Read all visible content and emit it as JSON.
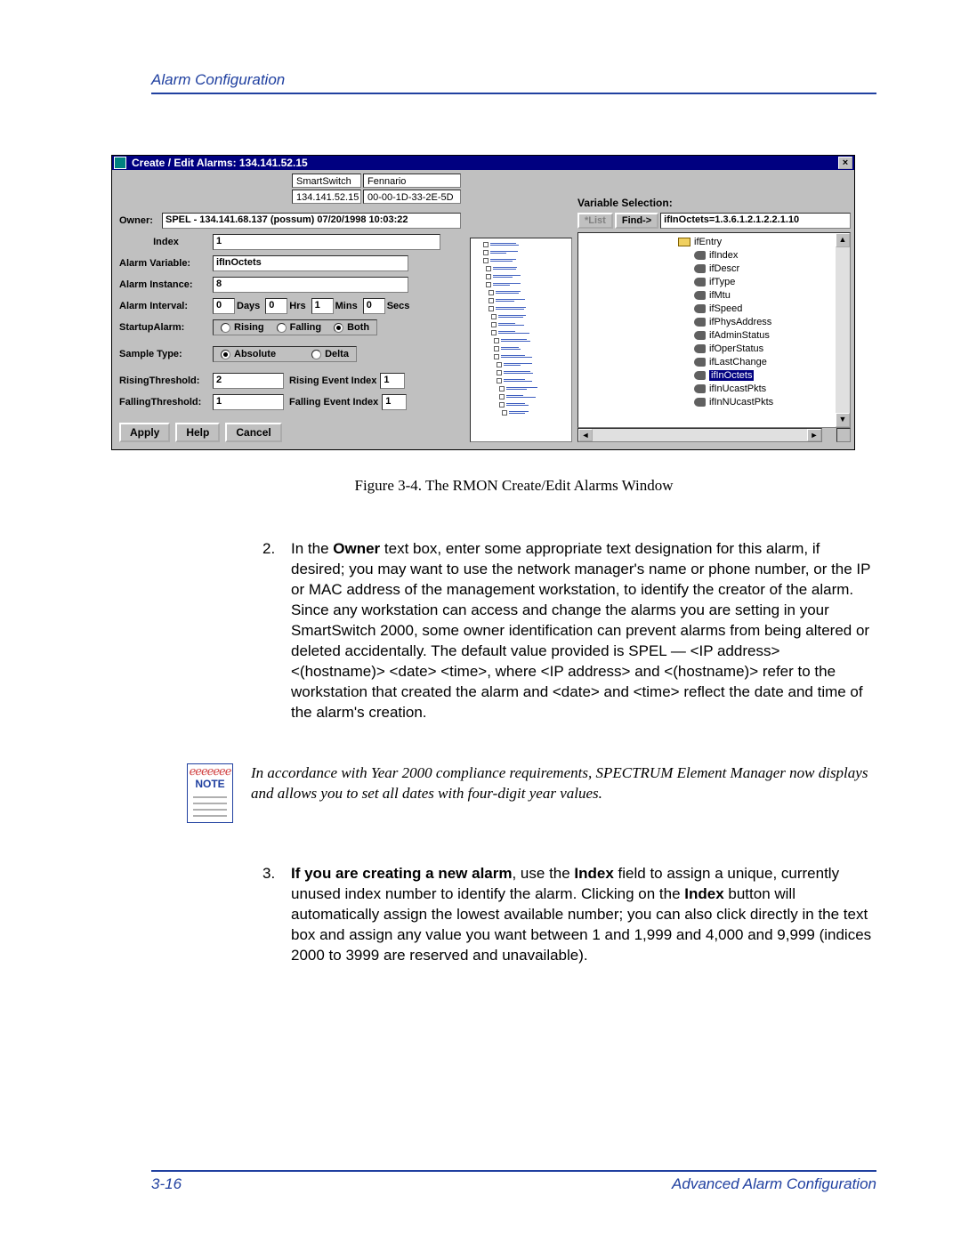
{
  "header": {
    "title": "Alarm Configuration"
  },
  "screenshot": {
    "title": "Create / Edit Alarms: 134.141.52.15",
    "info1a": "SmartSwitch",
    "info1b": "Fennario",
    "info2a": "134.141.52.15",
    "info2b": "00-00-1D-33-2E-5D",
    "owner_label": "Owner:",
    "owner_value": "SPEL - 134.141.68.137 (possum) 07/20/1998 10:03:22",
    "index_label": "Index",
    "index_value": "1",
    "alarm_variable_label": "Alarm Variable:",
    "alarm_variable_value": "ifInOctets",
    "alarm_instance_label": "Alarm Instance:",
    "alarm_instance_value": "8",
    "alarm_interval_label": "Alarm Interval:",
    "interval_days_value": "0",
    "interval_days_unit": "Days",
    "interval_hrs_value": "0",
    "interval_hrs_unit": "Hrs",
    "interval_mins_value": "1",
    "interval_mins_unit": "Mins",
    "interval_secs_value": "0",
    "interval_secs_unit": "Secs",
    "startup_label": "StartupAlarm:",
    "startup_rising": "Rising",
    "startup_falling": "Falling",
    "startup_both": "Both",
    "sample_label": "Sample Type:",
    "sample_absolute": "Absolute",
    "sample_delta": "Delta",
    "rising_thresh_label": "RisingThreshold:",
    "rising_thresh_value": "2",
    "rising_event_label": "Rising Event Index",
    "rising_event_value": "1",
    "falling_thresh_label": "FallingThreshold:",
    "falling_thresh_value": "1",
    "falling_event_label": "Falling Event Index",
    "falling_event_value": "1",
    "apply_btn": "Apply",
    "help_btn": "Help",
    "cancel_btn": "Cancel",
    "var_selection_label": "Variable Selection:",
    "list_btn": "*List",
    "find_btn": "Find->",
    "find_value": "ifInOctets=1.3.6.1.2.1.2.2.1.10",
    "tree": {
      "root": "ifEntry",
      "items": [
        "ifIndex",
        "ifDescr",
        "ifType",
        "ifMtu",
        "ifSpeed",
        "ifPhysAddress",
        "ifAdminStatus",
        "ifOperStatus",
        "ifLastChange",
        "ifInOctets",
        "ifInUcastPkts",
        "ifInNUcastPkts"
      ],
      "selected": "ifInOctets"
    }
  },
  "figure_caption": "Figure 3-4. The RMON Create/Edit Alarms Window",
  "step2_num": "2.",
  "step2_prefix": "In the ",
  "step2_bold1": "Owner",
  "step2_rest": " text box, enter some appropriate text designation for this alarm, if desired; you may want to use the network manager's name or phone number, or the IP or MAC address of the management workstation, to identify the creator of the alarm. Since any workstation can access and change the alarms you are setting in your SmartSwitch 2000, some owner identification can prevent alarms from being altered or deleted accidentally. The default value provided is SPEL — <IP address> <(hostname)> <date> <time>, where <IP address> and <(hostname)> refer to the workstation that created the alarm and <date> and <time> reflect the date and time of the alarm's creation.",
  "note_label": "NOTE",
  "note_text": "In accordance with Year 2000 compliance requirements, SPECTRUM Element Manager now displays and allows you to set all dates with four-digit year values.",
  "step3_num": "3.",
  "step3_bold1": "If you are creating a new alarm",
  "step3_mid1": ", use the ",
  "step3_bold2": "Index",
  "step3_mid2": " field to assign a unique, currently unused index number to identify the alarm. Clicking on the ",
  "step3_bold3": "Index",
  "step3_rest": " button will automatically assign the lowest available number; you can also click directly in the text box and assign any value you want between 1 and 1,999 and 4,000 and 9,999 (indices 2000 to 3999 are reserved and unavailable).",
  "footer": {
    "page": "3-16",
    "section": "Advanced Alarm Configuration"
  }
}
